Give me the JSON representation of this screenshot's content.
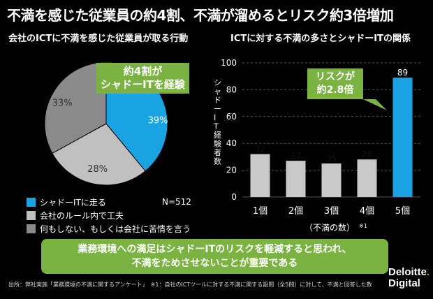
{
  "title": "不満を感じた従業員の約4割、不満が溜めるとリスク約3倍増加",
  "left_subtitle": "会社のICTに不満を感じた従業員が取る行動",
  "right_subtitle": "ICTに対する不満の多さとシャドーITの関係",
  "pie_callout": [
    "約4割が",
    "シャドーITを経験"
  ],
  "bar_callout": [
    "リスクが",
    "約2.8倍"
  ],
  "sample_size": "N=512",
  "banner": [
    "業務環境への満足はシャドーITのリスクを軽減すると思われ、",
    "不満をためさせないことが重要である"
  ],
  "footer": "出所：弊社実施「業務環境の不満に関するアンケート」　※1：自社のICTツールに対する不満に関する設問（全5問）に対して、不満と回答した数",
  "logo": {
    "line1": "Deloitte",
    "line2": "Digital"
  },
  "colors": {
    "blue": "#1aa3e3",
    "light_gray": "#c0c0c0",
    "dark_gray": "#8a8a8a",
    "green": "#7ab342",
    "bar_gray": "#c8c8c8"
  },
  "chart_data": [
    {
      "type": "pie",
      "labels": [
        "シャドーITに走る",
        "会社のルール内で工夫",
        "何もしない、もしくは会社に苦情を言う"
      ],
      "values": [
        39,
        28,
        33
      ],
      "value_labels": [
        "39%",
        "28%",
        "33%"
      ]
    },
    {
      "type": "bar",
      "categories": [
        "1個",
        "2個",
        "3個",
        "4個",
        "5個"
      ],
      "values": [
        32,
        27,
        25,
        28,
        89
      ],
      "ylabel": "シャドーIT経験者数",
      "xlabel": "（不満の数）",
      "xlabel_note": "※1",
      "ylim": [
        0,
        100
      ],
      "yticks": [
        0,
        20,
        40,
        60,
        80,
        100
      ],
      "highlight_index": 4
    }
  ]
}
